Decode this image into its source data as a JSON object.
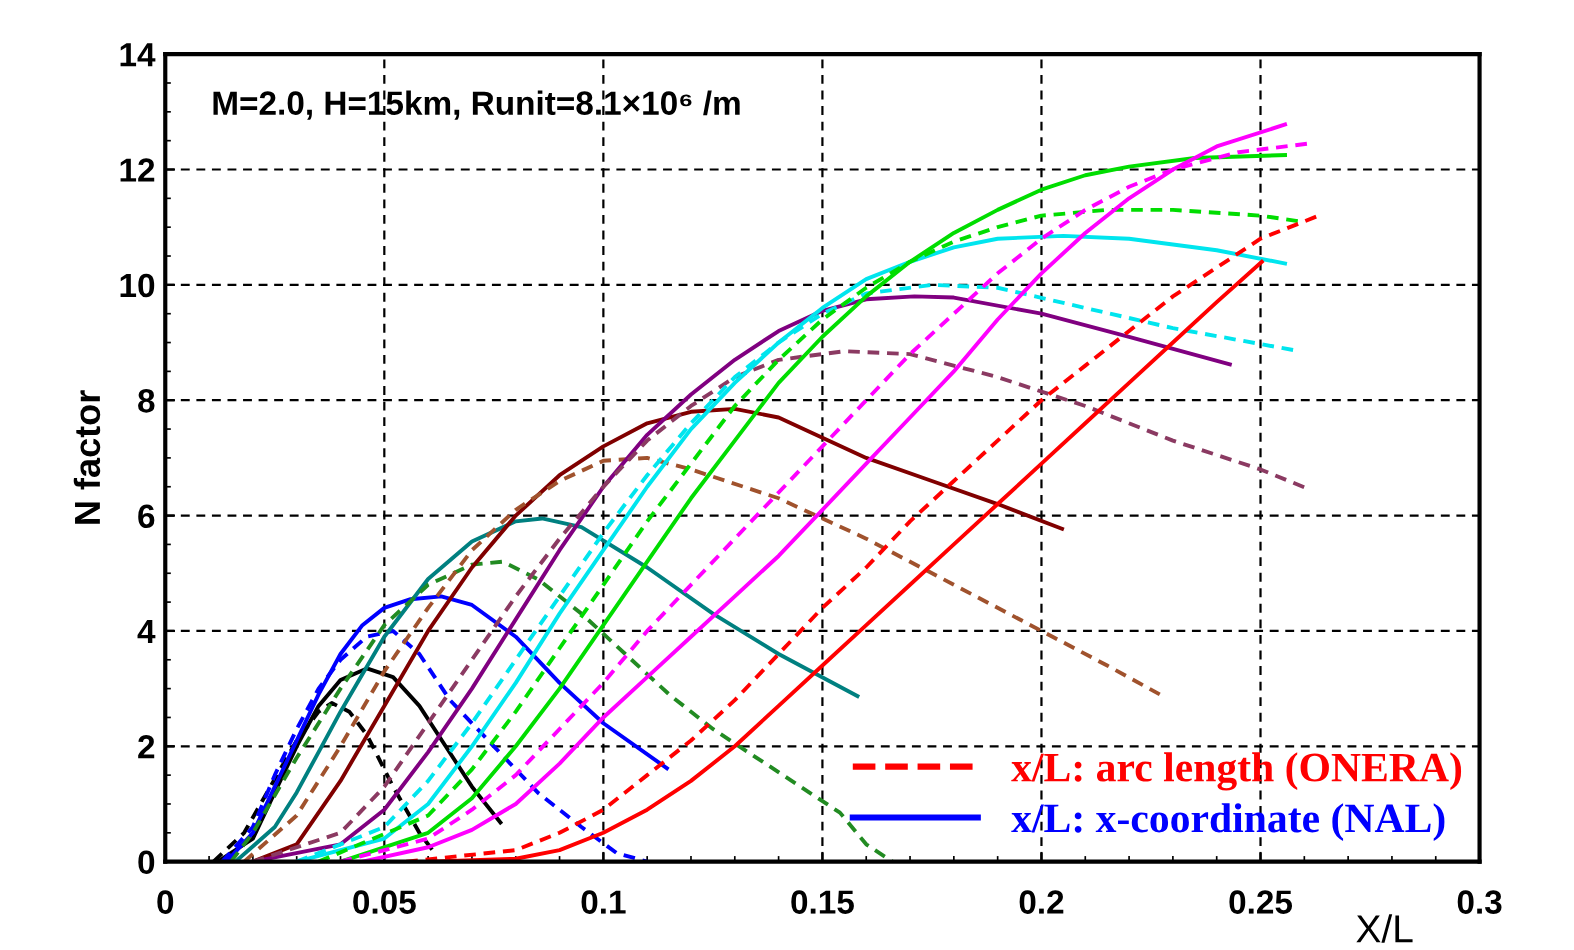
{
  "chart_data": {
    "type": "line",
    "xlabel": "X/L",
    "ylabel": "N factor",
    "annotations": [
      "M=2.0, H=15km, Runit=8.1×10⁶ /m"
    ],
    "xlim": [
      0,
      0.3
    ],
    "xticks": [
      0,
      0.05,
      0.1,
      0.15,
      0.2,
      0.25,
      0.3
    ],
    "ylim": [
      0,
      14
    ],
    "yticks": [
      0,
      2,
      4,
      6,
      8,
      10,
      12,
      14
    ],
    "grid": true,
    "legend": "bottom right",
    "marker": "none",
    "series": [
      {
        "color": "#000000",
        "line_style": "solid",
        "x": [
          0.012,
          0.02,
          0.025,
          0.03,
          0.035,
          0.04,
          0.046,
          0.052,
          0.058,
          0.064,
          0.07,
          0.0765
        ],
        "values": [
          0,
          0.4,
          1.2,
          2.0,
          2.7,
          3.15,
          3.35,
          3.2,
          2.7,
          2.0,
          1.3,
          0.68
        ]
      },
      {
        "color": "#000000",
        "line_style": "dashed",
        "x": [
          0.011,
          0.018,
          0.024,
          0.03,
          0.035,
          0.038,
          0.042,
          0.046,
          0.052,
          0.058,
          0.061
        ],
        "values": [
          0,
          0.5,
          1.3,
          2.1,
          2.6,
          2.75,
          2.6,
          2.2,
          1.3,
          0.5,
          0.2
        ]
      },
      {
        "name": "x/L: x-coordinate (NAL)",
        "color": "#0000ff",
        "line_style": "solid",
        "x": [
          0.014,
          0.02,
          0.025,
          0.03,
          0.035,
          0.04,
          0.045,
          0.05,
          0.056,
          0.063,
          0.07,
          0.08,
          0.09,
          0.1,
          0.1145
        ],
        "values": [
          0,
          0.5,
          1.3,
          2.1,
          2.9,
          3.6,
          4.1,
          4.4,
          4.55,
          4.6,
          4.45,
          3.9,
          3.1,
          2.4,
          1.62
        ]
      },
      {
        "color": "#0000ff",
        "line_style": "dashed",
        "x": [
          0.013,
          0.02,
          0.025,
          0.03,
          0.035,
          0.04,
          0.046,
          0.052,
          0.058,
          0.065,
          0.075,
          0.085,
          0.095,
          0.103,
          0.11
        ],
        "values": [
          0,
          0.6,
          1.5,
          2.3,
          3.0,
          3.5,
          3.9,
          4.0,
          3.6,
          2.8,
          2.0,
          1.2,
          0.6,
          0.15,
          0
        ]
      },
      {
        "color": "#008080",
        "line_style": "solid",
        "x": [
          0.016,
          0.025,
          0.03,
          0.035,
          0.04,
          0.05,
          0.06,
          0.07,
          0.08,
          0.086,
          0.095,
          0.11,
          0.125,
          0.14,
          0.158
        ],
        "values": [
          0,
          0.6,
          1.2,
          1.9,
          2.6,
          3.9,
          4.9,
          5.55,
          5.9,
          5.95,
          5.8,
          5.1,
          4.3,
          3.6,
          2.87
        ]
      },
      {
        "color": "#228b22",
        "line_style": "dashed",
        "x": [
          0.015,
          0.02,
          0.03,
          0.04,
          0.05,
          0.06,
          0.07,
          0.077,
          0.085,
          0.095,
          0.105,
          0.115,
          0.125,
          0.135,
          0.145,
          0.154,
          0.16,
          0.166
        ],
        "values": [
          0,
          0.5,
          1.8,
          3.0,
          4.1,
          4.8,
          5.15,
          5.2,
          4.9,
          4.3,
          3.6,
          2.9,
          2.3,
          1.8,
          1.3,
          0.85,
          0.3,
          0
        ]
      },
      {
        "color": "#800000",
        "line_style": "solid",
        "x": [
          0.02,
          0.03,
          0.04,
          0.05,
          0.06,
          0.07,
          0.08,
          0.09,
          0.1,
          0.11,
          0.12,
          0.13,
          0.14,
          0.15,
          0.16,
          0.175,
          0.19,
          0.2047
        ],
        "values": [
          0,
          0.3,
          1.4,
          2.7,
          4.0,
          5.1,
          6.0,
          6.7,
          7.2,
          7.6,
          7.8,
          7.85,
          7.7,
          7.35,
          7.0,
          6.6,
          6.2,
          5.77
        ]
      },
      {
        "color": "#a0522d",
        "line_style": "dashed",
        "x": [
          0.018,
          0.03,
          0.04,
          0.05,
          0.06,
          0.07,
          0.08,
          0.09,
          0.1,
          0.11,
          0.12,
          0.14,
          0.16,
          0.18,
          0.2,
          0.215,
          0.227
        ],
        "values": [
          0,
          0.8,
          2.0,
          3.3,
          4.4,
          5.4,
          6.1,
          6.6,
          6.95,
          7.0,
          6.8,
          6.3,
          5.6,
          4.8,
          4.0,
          3.4,
          2.9
        ]
      },
      {
        "color": "#800080",
        "line_style": "solid",
        "x": [
          0.02,
          0.04,
          0.05,
          0.06,
          0.07,
          0.08,
          0.09,
          0.1,
          0.11,
          0.12,
          0.13,
          0.14,
          0.15,
          0.16,
          0.171,
          0.18,
          0.2,
          0.22,
          0.243
        ],
        "values": [
          0,
          0.3,
          0.9,
          1.9,
          3.0,
          4.2,
          5.4,
          6.5,
          7.4,
          8.1,
          8.7,
          9.2,
          9.55,
          9.75,
          9.8,
          9.78,
          9.5,
          9.1,
          8.62
        ]
      },
      {
        "color": "#8b3a62",
        "line_style": "dashed",
        "x": [
          0.02,
          0.04,
          0.05,
          0.06,
          0.07,
          0.08,
          0.09,
          0.1,
          0.11,
          0.12,
          0.13,
          0.14,
          0.155,
          0.17,
          0.19,
          0.21,
          0.23,
          0.25,
          0.261
        ],
        "values": [
          0,
          0.5,
          1.3,
          2.4,
          3.5,
          4.6,
          5.6,
          6.5,
          7.3,
          7.9,
          8.4,
          8.7,
          8.85,
          8.8,
          8.4,
          7.9,
          7.3,
          6.8,
          6.46
        ]
      },
      {
        "color": "#00e5ee",
        "line_style": "solid",
        "x": [
          0.03,
          0.05,
          0.06,
          0.07,
          0.08,
          0.09,
          0.1,
          0.11,
          0.12,
          0.13,
          0.14,
          0.15,
          0.16,
          0.17,
          0.18,
          0.19,
          0.205,
          0.22,
          0.24,
          0.2556
        ],
        "values": [
          0,
          0.4,
          1.0,
          2.0,
          3.1,
          4.3,
          5.4,
          6.5,
          7.5,
          8.3,
          9.0,
          9.6,
          10.1,
          10.4,
          10.65,
          10.8,
          10.85,
          10.8,
          10.6,
          10.37
        ]
      },
      {
        "color": "#00e5ee",
        "line_style": "dashed",
        "x": [
          0.03,
          0.05,
          0.06,
          0.07,
          0.08,
          0.09,
          0.1,
          0.11,
          0.12,
          0.13,
          0.14,
          0.15,
          0.16,
          0.175,
          0.19,
          0.21,
          0.23,
          0.2575
        ],
        "values": [
          0,
          0.6,
          1.4,
          2.4,
          3.5,
          4.6,
          5.7,
          6.7,
          7.6,
          8.4,
          9.0,
          9.5,
          9.85,
          10.0,
          9.95,
          9.6,
          9.25,
          8.87
        ]
      },
      {
        "color": "#00dd00",
        "line_style": "solid",
        "x": [
          0.04,
          0.06,
          0.07,
          0.08,
          0.09,
          0.1,
          0.11,
          0.12,
          0.13,
          0.14,
          0.15,
          0.16,
          0.17,
          0.18,
          0.19,
          0.2,
          0.21,
          0.22,
          0.235,
          0.2556
        ],
        "values": [
          0,
          0.5,
          1.1,
          2.0,
          3.0,
          4.1,
          5.2,
          6.3,
          7.3,
          8.3,
          9.1,
          9.8,
          10.4,
          10.9,
          11.3,
          11.65,
          11.9,
          12.05,
          12.2,
          12.25
        ]
      },
      {
        "color": "#00dd00",
        "line_style": "dashed",
        "x": [
          0.035,
          0.06,
          0.07,
          0.08,
          0.09,
          0.1,
          0.11,
          0.12,
          0.13,
          0.14,
          0.15,
          0.16,
          0.17,
          0.18,
          0.19,
          0.2,
          0.215,
          0.23,
          0.25,
          0.259
        ],
        "values": [
          0,
          0.8,
          1.6,
          2.6,
          3.7,
          4.8,
          5.9,
          6.9,
          7.9,
          8.7,
          9.4,
          9.95,
          10.4,
          10.75,
          11.0,
          11.2,
          11.3,
          11.3,
          11.2,
          11.1
        ]
      },
      {
        "color": "#ff00ff",
        "line_style": "solid",
        "x": [
          0.045,
          0.06,
          0.07,
          0.08,
          0.09,
          0.1,
          0.11,
          0.12,
          0.13,
          0.14,
          0.15,
          0.16,
          0.17,
          0.18,
          0.19,
          0.2,
          0.21,
          0.22,
          0.23,
          0.24,
          0.2556
        ],
        "values": [
          0,
          0.25,
          0.55,
          1.0,
          1.7,
          2.5,
          3.2,
          3.9,
          4.6,
          5.3,
          6.1,
          6.9,
          7.7,
          8.5,
          9.4,
          10.2,
          10.9,
          11.5,
          12.0,
          12.4,
          12.78
        ]
      },
      {
        "color": "#ff00ff",
        "line_style": "dashed",
        "x": [
          0.04,
          0.06,
          0.07,
          0.08,
          0.09,
          0.1,
          0.11,
          0.12,
          0.13,
          0.14,
          0.15,
          0.16,
          0.17,
          0.18,
          0.19,
          0.2,
          0.21,
          0.22,
          0.23,
          0.245,
          0.261
        ],
        "values": [
          0,
          0.4,
          0.9,
          1.5,
          2.3,
          3.1,
          4.0,
          4.8,
          5.6,
          6.4,
          7.2,
          8.0,
          8.8,
          9.5,
          10.2,
          10.8,
          11.3,
          11.7,
          12.0,
          12.3,
          12.45
        ]
      },
      {
        "color": "#ff0000",
        "line_style": "solid",
        "x": [
          0.06,
          0.08,
          0.09,
          0.1,
          0.11,
          0.12,
          0.13,
          0.14,
          0.15,
          0.16,
          0.17,
          0.18,
          0.19,
          0.2,
          0.21,
          0.22,
          0.23,
          0.24,
          0.2503
        ],
        "values": [
          0,
          0.05,
          0.2,
          0.5,
          0.9,
          1.4,
          2.0,
          2.7,
          3.4,
          4.1,
          4.8,
          5.5,
          6.2,
          6.9,
          7.6,
          8.3,
          9.0,
          9.7,
          10.4
        ]
      },
      {
        "name": "x/L: arc length (ONERA)",
        "color": "#ff0000",
        "line_style": "dashed",
        "x": [
          0.055,
          0.08,
          0.09,
          0.1,
          0.11,
          0.12,
          0.13,
          0.14,
          0.15,
          0.16,
          0.17,
          0.18,
          0.19,
          0.2,
          0.21,
          0.22,
          0.23,
          0.24,
          0.25,
          0.2643
        ],
        "values": [
          0,
          0.2,
          0.5,
          0.9,
          1.5,
          2.1,
          2.8,
          3.6,
          4.4,
          5.1,
          5.9,
          6.6,
          7.3,
          8.0,
          8.6,
          9.2,
          9.8,
          10.3,
          10.8,
          11.23
        ]
      }
    ]
  }
}
